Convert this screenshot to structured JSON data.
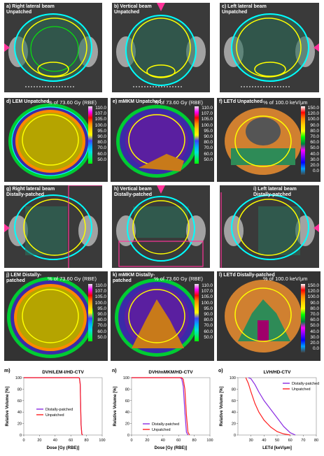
{
  "panels": {
    "a": {
      "label": "a)  Right lateral beam\nUnpatched"
    },
    "b": {
      "label": "b)  Vertical beam\nUnpatched"
    },
    "c": {
      "label": "c)  Left lateral beam\nUnpatched"
    },
    "d": {
      "label": "d)  LEM Unpatched",
      "unit": "% of 73.60 Gy (RBE)"
    },
    "e": {
      "label": "e)  mMKM Unpatched",
      "unit": "% of 73.60 Gy (RBE)"
    },
    "f": {
      "label": "f)  LETd Unpatched",
      "unit": "% of 100.0 keV/µm"
    },
    "g": {
      "label": "g)  Right lateral beam\nDistally-patched"
    },
    "h": {
      "label": "h)  Vertical beam\nDistally-patched"
    },
    "i": {
      "label": "i)  Left lateral beam\nDistally-patched"
    },
    "j": {
      "label": "j)  LEM Distally-\npatched",
      "unit": "% of 73.60 Gy (RBE)"
    },
    "k": {
      "label": "k)  mMKM Distally-\npatched",
      "unit": "% of 73.60 Gy (RBE)"
    },
    "l": {
      "label": "l)  LETd Distally-patched",
      "unit": "% of 100.0 keV/µm"
    }
  },
  "colorbars": {
    "dose": {
      "ticks": [
        "110.0",
        "107.0",
        "105.0",
        "100.0",
        "95.0",
        "90.0",
        "80.0",
        "70.0",
        "60.0",
        "50.0"
      ],
      "colors": [
        "#e8e8e8",
        "#ff00ff",
        "#ff0000",
        "#ff8800",
        "#ffd000",
        "#ffff00",
        "#4040ff",
        "#00aaff",
        "#00e0e0",
        "#00ff00"
      ]
    },
    "let": {
      "ticks": [
        "150.0",
        "120.0",
        "100.0",
        "90.0",
        "80.0",
        "70.0",
        "60.0",
        "50.0",
        "40.0",
        "30.0",
        "20.0",
        "0.0"
      ],
      "colors": [
        "#ffffff",
        "#ff0000",
        "#ff8800",
        "#ffd000",
        "#ffff00",
        "#00ff00",
        "#008040",
        "#ff00ff",
        "#8000ff",
        "#0000ff",
        "#00a0ff",
        "#404040"
      ]
    }
  },
  "chart_data": [
    {
      "type": "line",
      "panel_label": "m)",
      "title": "DVH/LEM-I/HD-CTV",
      "xlabel": "Dose [Gy (RBE)]",
      "ylabel": "Relative Volume [%]",
      "xlim": [
        0,
        100
      ],
      "ylim": [
        0,
        100
      ],
      "xticks": [
        0,
        20,
        40,
        60,
        80,
        100
      ],
      "yticks": [
        0,
        20,
        40,
        60,
        80,
        100
      ],
      "legend_position": "center",
      "series": [
        {
          "name": "Distally-patched",
          "color": "#8a2be2",
          "x": [
            0,
            70,
            71,
            72,
            73,
            74,
            75
          ],
          "y": [
            100,
            100,
            99,
            90,
            20,
            2,
            0
          ]
        },
        {
          "name": "Unpatched",
          "color": "#ff2020",
          "x": [
            0,
            70,
            71,
            72,
            73,
            74,
            75
          ],
          "y": [
            100,
            100,
            99,
            88,
            18,
            2,
            0
          ]
        }
      ]
    },
    {
      "type": "line",
      "panel_label": "n)",
      "title": "DVH/mMKM/HD-CTV",
      "xlabel": "Dose [Gy (RBE)]",
      "ylabel": "Relative Volume [%]",
      "xlim": [
        0,
        100
      ],
      "ylim": [
        0,
        100
      ],
      "xticks": [
        0,
        20,
        40,
        60,
        80,
        100
      ],
      "yticks": [
        0,
        20,
        40,
        60,
        80,
        100
      ],
      "legend_position": "bottom-center",
      "series": [
        {
          "name": "Distally-patched",
          "color": "#8a2be2",
          "x": [
            0,
            62,
            64,
            66,
            68,
            70,
            72
          ],
          "y": [
            100,
            100,
            98,
            85,
            40,
            5,
            0
          ]
        },
        {
          "name": "Unpatched",
          "color": "#ff2020",
          "x": [
            0,
            64,
            66,
            68,
            70,
            72,
            74
          ],
          "y": [
            100,
            100,
            97,
            80,
            35,
            5,
            0
          ]
        }
      ]
    },
    {
      "type": "line",
      "panel_label": "o)",
      "title": "LVH/HD-CTV",
      "xlabel": "LETd [keV/µm]",
      "ylabel": "Relative Volume [%]",
      "xlim": [
        20,
        80
      ],
      "ylim": [
        0,
        100
      ],
      "xticks": [
        30,
        40,
        50,
        60,
        70,
        80
      ],
      "yticks": [
        0,
        20,
        40,
        60,
        80,
        100
      ],
      "legend_position": "top-right",
      "series": [
        {
          "name": "Distally-patched",
          "color": "#8a2be2",
          "x": [
            28,
            30,
            33,
            36,
            40,
            45,
            50,
            55,
            60,
            64
          ],
          "y": [
            100,
            98,
            88,
            75,
            60,
            45,
            30,
            15,
            4,
            0
          ]
        },
        {
          "name": "Unpatched",
          "color": "#ff2020",
          "x": [
            26,
            28,
            30,
            33,
            36,
            40,
            45,
            50,
            55,
            60
          ],
          "y": [
            100,
            90,
            75,
            55,
            40,
            26,
            14,
            6,
            2,
            0
          ]
        }
      ]
    }
  ]
}
